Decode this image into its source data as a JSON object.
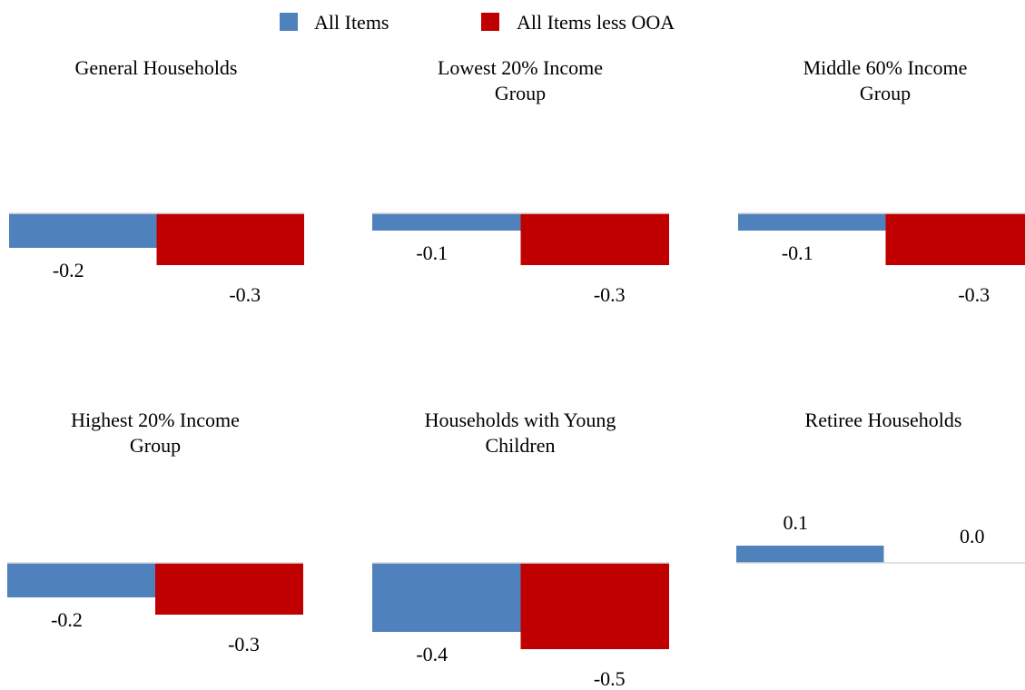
{
  "legend": [
    {
      "label": "All Items",
      "color": "#4F81BD"
    },
    {
      "label": "All Items less OOA",
      "color": "#C00000"
    }
  ],
  "chart_data": [
    {
      "type": "bar",
      "title": "General Households",
      "series": [
        {
          "name": "All Items",
          "values": [
            -0.2
          ],
          "labels": [
            "-0.2"
          ],
          "color": "#4F81BD"
        },
        {
          "name": "All Items less OOA",
          "values": [
            -0.3
          ],
          "labels": [
            "-0.3"
          ],
          "color": "#C00000"
        }
      ],
      "ylim": [
        -0.55,
        0.2
      ],
      "grid": false
    },
    {
      "type": "bar",
      "title": "Lowest 20% Income Group",
      "series": [
        {
          "name": "All Items",
          "values": [
            -0.1
          ],
          "labels": [
            "-0.1"
          ],
          "color": "#4F81BD"
        },
        {
          "name": "All Items less OOA",
          "values": [
            -0.3
          ],
          "labels": [
            "-0.3"
          ],
          "color": "#C00000"
        }
      ],
      "ylim": [
        -0.55,
        0.2
      ],
      "grid": false
    },
    {
      "type": "bar",
      "title": "Middle 60% Income Group",
      "series": [
        {
          "name": "All Items",
          "values": [
            -0.1
          ],
          "labels": [
            "-0.1"
          ],
          "color": "#4F81BD"
        },
        {
          "name": "All Items less OOA",
          "values": [
            -0.3
          ],
          "labels": [
            "-0.3"
          ],
          "color": "#C00000"
        }
      ],
      "ylim": [
        -0.55,
        0.2
      ],
      "grid": false
    },
    {
      "type": "bar",
      "title": "Highest 20% Income Group",
      "series": [
        {
          "name": "All Items",
          "values": [
            -0.2
          ],
          "labels": [
            "-0.2"
          ],
          "color": "#4F81BD"
        },
        {
          "name": "All Items less OOA",
          "values": [
            -0.3
          ],
          "labels": [
            "-0.3"
          ],
          "color": "#C00000"
        }
      ],
      "ylim": [
        -0.55,
        0.2
      ],
      "grid": false
    },
    {
      "type": "bar",
      "title": "Households with Young Children",
      "series": [
        {
          "name": "All Items",
          "values": [
            -0.4
          ],
          "labels": [
            "-0.4"
          ],
          "color": "#4F81BD"
        },
        {
          "name": "All Items less OOA",
          "values": [
            -0.5
          ],
          "labels": [
            "-0.5"
          ],
          "color": "#C00000"
        }
      ],
      "ylim": [
        -0.55,
        0.2
      ],
      "grid": false
    },
    {
      "type": "bar",
      "title": "Retiree Households",
      "series": [
        {
          "name": "All Items",
          "values": [
            0.1
          ],
          "labels": [
            "0.1"
          ],
          "color": "#4F81BD"
        },
        {
          "name": "All Items less OOA",
          "values": [
            0.0
          ],
          "labels": [
            "0.0"
          ],
          "color": "#C00000"
        }
      ],
      "ylim": [
        -0.55,
        0.2
      ],
      "grid": false
    }
  ]
}
